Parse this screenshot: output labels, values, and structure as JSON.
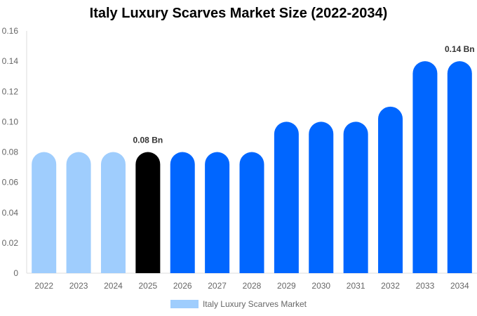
{
  "chart_data": {
    "type": "bar",
    "title": "Italy Luxury Scarves Market Size (2022-2034)",
    "categories": [
      "2022",
      "2023",
      "2024",
      "2025",
      "2026",
      "2027",
      "2028",
      "2029",
      "2030",
      "2031",
      "2032",
      "2033",
      "2034"
    ],
    "series": [
      {
        "name": "Italy Luxury Scarves Market",
        "values": [
          0.08,
          0.08,
          0.08,
          0.08,
          0.08,
          0.08,
          0.08,
          0.1,
          0.1,
          0.1,
          0.11,
          0.14,
          0.14
        ]
      }
    ],
    "bar_colors": [
      "#9fcdfd",
      "#9fcdfd",
      "#9fcdfd",
      "#000000",
      "#0066ff",
      "#0066ff",
      "#0066ff",
      "#0066ff",
      "#0066ff",
      "#0066ff",
      "#0066ff",
      "#0066ff",
      "#0066ff"
    ],
    "data_labels": [
      {
        "category": "2025",
        "text": "0.08 Bn"
      },
      {
        "category": "2034",
        "text": "0.14 Bn"
      }
    ],
    "ylim": [
      0,
      0.16
    ],
    "yticks": [
      "0",
      "0.02",
      "0.04",
      "0.06",
      "0.08",
      "0.10",
      "0.12",
      "0.14",
      "0.16"
    ],
    "xlabel": "",
    "ylabel": "",
    "grid": false,
    "legend_position": "bottom",
    "legend_color": "#9fcdfd"
  }
}
